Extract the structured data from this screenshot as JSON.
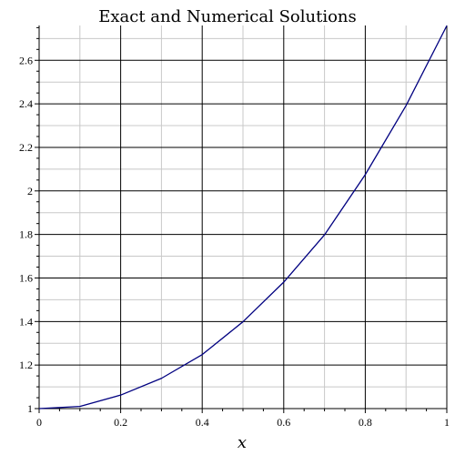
{
  "chart_data": {
    "type": "line",
    "title": "Exact and Numerical Solutions",
    "xlabel": "x",
    "ylabel": "",
    "xlim": [
      0,
      1
    ],
    "ylim": [
      1,
      2.76
    ],
    "grid": true,
    "xticks": [
      0,
      0.2,
      0.4,
      0.6,
      0.8,
      1
    ],
    "xtick_labels": [
      "0",
      "0.2",
      "0.4",
      "0.6",
      "0.8",
      "1"
    ],
    "yticks": [
      1,
      1.2,
      1.4,
      1.6,
      1.8,
      2,
      2.2,
      2.4,
      2.6
    ],
    "ytick_labels": [
      "1",
      "1.2",
      "1.4",
      "1.6",
      "1.8",
      "2",
      "2.2",
      "2.4",
      "2.6"
    ],
    "series": [
      {
        "color": "#000080",
        "x": [
          0,
          0.1,
          0.2,
          0.3,
          0.4,
          0.5,
          0.6,
          0.7,
          0.8,
          0.9,
          1.0
        ],
        "y": [
          1.0,
          1.01,
          1.062,
          1.139,
          1.248,
          1.399,
          1.581,
          1.798,
          2.075,
          2.392,
          2.759
        ]
      }
    ]
  }
}
